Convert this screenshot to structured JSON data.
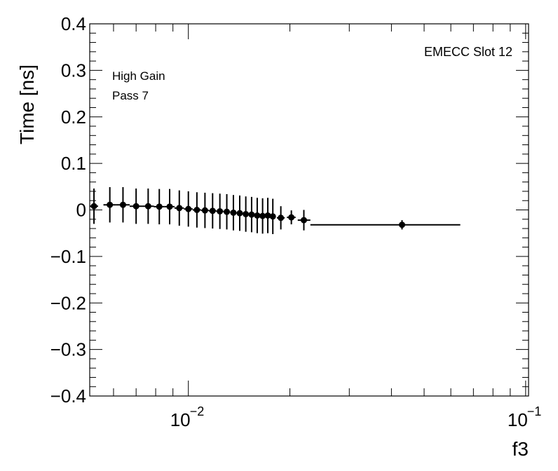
{
  "chart_data": {
    "type": "scatter",
    "xlabel": "f3",
    "ylabel": "Time [ns]",
    "x_scale": "log",
    "xlim": [
      0.0051,
      0.102
    ],
    "ylim": [
      -0.4,
      0.4
    ],
    "grid": false,
    "annotations": [
      "High Gain",
      "Pass 7",
      "EMECC Slot 12"
    ],
    "x_ticks": [
      {
        "value": 0.01,
        "base": "10",
        "exp": "−2"
      },
      {
        "value": 0.1,
        "base": "10",
        "exp": "−1"
      }
    ],
    "y_ticks": [
      {
        "value": -0.4,
        "label": "−0.4"
      },
      {
        "value": -0.3,
        "label": "−0.3"
      },
      {
        "value": -0.2,
        "label": "−0.2"
      },
      {
        "value": -0.1,
        "label": "−0.1"
      },
      {
        "value": 0,
        "label": "0"
      },
      {
        "value": 0.1,
        "label": "0.1"
      },
      {
        "value": 0.2,
        "label": "0.2"
      },
      {
        "value": 0.3,
        "label": "0.3"
      },
      {
        "value": 0.4,
        "label": "0.4"
      }
    ],
    "series": [
      {
        "points": [
          {
            "x": 0.00525,
            "y": 0.008,
            "err": 0.038,
            "xlo": 0.0051,
            "xhi": 0.0054
          },
          {
            "x": 0.00585,
            "y": 0.011,
            "err": 0.038,
            "xlo": 0.0056,
            "xhi": 0.0061
          },
          {
            "x": 0.0064,
            "y": 0.011,
            "err": 0.038,
            "xlo": 0.0061,
            "xhi": 0.0067
          },
          {
            "x": 0.007,
            "y": 0.008,
            "err": 0.038,
            "xlo": 0.0067,
            "xhi": 0.0073
          },
          {
            "x": 0.0076,
            "y": 0.008,
            "err": 0.038,
            "xlo": 0.0073,
            "xhi": 0.0079
          },
          {
            "x": 0.0082,
            "y": 0.007,
            "err": 0.038,
            "xlo": 0.0079,
            "xhi": 0.0085
          },
          {
            "x": 0.0088,
            "y": 0.007,
            "err": 0.038,
            "xlo": 0.0085,
            "xhi": 0.0091
          },
          {
            "x": 0.0094,
            "y": 0.004,
            "err": 0.038,
            "xlo": 0.0091,
            "xhi": 0.0097
          },
          {
            "x": 0.01,
            "y": 0.002,
            "err": 0.038,
            "xlo": 0.0097,
            "xhi": 0.0103
          },
          {
            "x": 0.0106,
            "y": 0.0,
            "err": 0.038,
            "xlo": 0.0103,
            "xhi": 0.0109
          },
          {
            "x": 0.0112,
            "y": -0.001,
            "err": 0.038,
            "xlo": 0.0109,
            "xhi": 0.0115
          },
          {
            "x": 0.0118,
            "y": -0.002,
            "err": 0.038,
            "xlo": 0.0115,
            "xhi": 0.0121
          },
          {
            "x": 0.0124,
            "y": -0.003,
            "err": 0.038,
            "xlo": 0.0121,
            "xhi": 0.0127
          },
          {
            "x": 0.013,
            "y": -0.004,
            "err": 0.038,
            "xlo": 0.0127,
            "xhi": 0.0133
          },
          {
            "x": 0.0136,
            "y": -0.006,
            "err": 0.038,
            "xlo": 0.0133,
            "xhi": 0.0139
          },
          {
            "x": 0.0142,
            "y": -0.007,
            "err": 0.038,
            "xlo": 0.0139,
            "xhi": 0.0145
          },
          {
            "x": 0.0148,
            "y": -0.009,
            "err": 0.038,
            "xlo": 0.0145,
            "xhi": 0.0151
          },
          {
            "x": 0.0154,
            "y": -0.01,
            "err": 0.038,
            "xlo": 0.0151,
            "xhi": 0.0157
          },
          {
            "x": 0.016,
            "y": -0.012,
            "err": 0.038,
            "xlo": 0.0157,
            "xhi": 0.0163
          },
          {
            "x": 0.0166,
            "y": -0.013,
            "err": 0.038,
            "xlo": 0.0163,
            "xhi": 0.0169
          },
          {
            "x": 0.0172,
            "y": -0.012,
            "err": 0.038,
            "xlo": 0.0169,
            "xhi": 0.0175
          },
          {
            "x": 0.0178,
            "y": -0.014,
            "err": 0.038,
            "xlo": 0.0175,
            "xhi": 0.0181
          },
          {
            "x": 0.0188,
            "y": -0.017,
            "err": 0.025,
            "xlo": 0.0183,
            "xhi": 0.0193
          },
          {
            "x": 0.0202,
            "y": -0.016,
            "err": 0.015,
            "xlo": 0.0196,
            "xhi": 0.0208
          },
          {
            "x": 0.022,
            "y": -0.022,
            "err": 0.022,
            "xlo": 0.0211,
            "xhi": 0.023
          },
          {
            "x": 0.043,
            "y": -0.032,
            "err": 0.01,
            "xlo": 0.023,
            "xhi": 0.064
          }
        ]
      }
    ]
  }
}
